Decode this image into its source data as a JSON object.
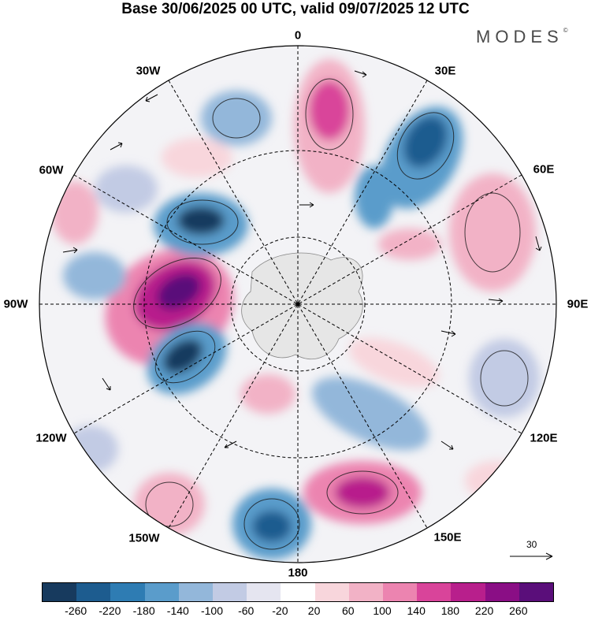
{
  "title": "Base 30/06/2025 00 UTC, valid 09/07/2025 12 UTC",
  "brand": "MODES",
  "brand_mark": "©",
  "lon_labels": {
    "n": "0",
    "ne": "30E",
    "ene": "60E",
    "e": "90E",
    "ese": "120E",
    "se": "150E",
    "s": "180",
    "sw": "150W",
    "wsw": "120W",
    "w": "90W",
    "wnw": "60W",
    "nw": "30W"
  },
  "reference_vector": {
    "value": "30"
  },
  "colorbar": {
    "colors": [
      "#173a5e",
      "#1d5c8f",
      "#2e7cb3",
      "#5a9ccb",
      "#93b7da",
      "#c2cbe4",
      "#e5e5f0",
      "#ffffff",
      "#f8d6dc",
      "#f2b2c6",
      "#ec84b0",
      "#d9449a",
      "#b81f8c",
      "#8a0e85",
      "#5a0e7a"
    ],
    "tick_labels": [
      "-260",
      "-220",
      "-180",
      "-140",
      "-100",
      "-60",
      "-20",
      "20",
      "60",
      "100",
      "140",
      "180",
      "220",
      "260"
    ]
  },
  "icons": [
    "north-arrow-none",
    "reference-arrow-icon"
  ]
}
